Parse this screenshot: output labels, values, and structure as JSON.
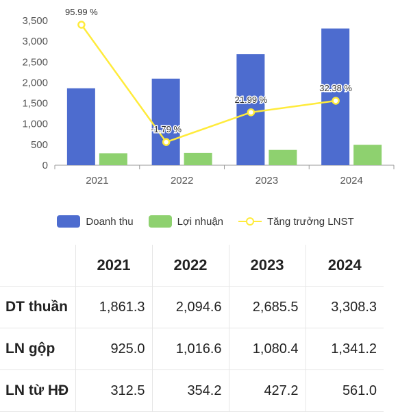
{
  "chart_data": {
    "type": "bar",
    "categories": [
      "2021",
      "2022",
      "2023",
      "2024"
    ],
    "ylim": [
      0,
      3500
    ],
    "yticks": [
      "0",
      "500",
      "1,000",
      "1,500",
      "2,000",
      "2,500",
      "3,000",
      "3,500"
    ],
    "series": [
      {
        "name": "Doanh thu",
        "type": "bar",
        "values": [
          1861.3,
          2094.6,
          2685.5,
          3308.3
        ],
        "color": "#4d6ccf"
      },
      {
        "name": "Lợi nhuận",
        "type": "bar",
        "values": [
          290,
          300,
          370,
          495
        ],
        "color": "#8ed16f"
      },
      {
        "name": "Tăng trưởng LNST",
        "type": "line",
        "values": [
          3400,
          560,
          1280,
          1560
        ],
        "labels": [
          "95.99 %",
          "-1.79 %",
          "21.99 %",
          "32.38 %"
        ],
        "color": "#ffeb3b"
      }
    ]
  },
  "legend": [
    {
      "label": "Doanh thu",
      "color": "#4d6ccf",
      "kind": "bar"
    },
    {
      "label": "Lợi nhuận",
      "color": "#8ed16f",
      "kind": "bar"
    },
    {
      "label": "Tăng trưởng LNST",
      "color": "#ffeb3b",
      "kind": "line"
    }
  ],
  "table": {
    "headers": [
      "",
      "2021",
      "2022",
      "2023",
      "2024"
    ],
    "rows": [
      {
        "label": "DT thuần",
        "values": [
          "1,861.3",
          "2,094.6",
          "2,685.5",
          "3,308.3"
        ]
      },
      {
        "label": "LN gộp",
        "values": [
          "925.0",
          "1,016.6",
          "1,080.4",
          "1,341.2"
        ]
      },
      {
        "label": "LN từ HĐ",
        "values": [
          "312.5",
          "354.2",
          "427.2",
          "561.0"
        ]
      }
    ]
  }
}
